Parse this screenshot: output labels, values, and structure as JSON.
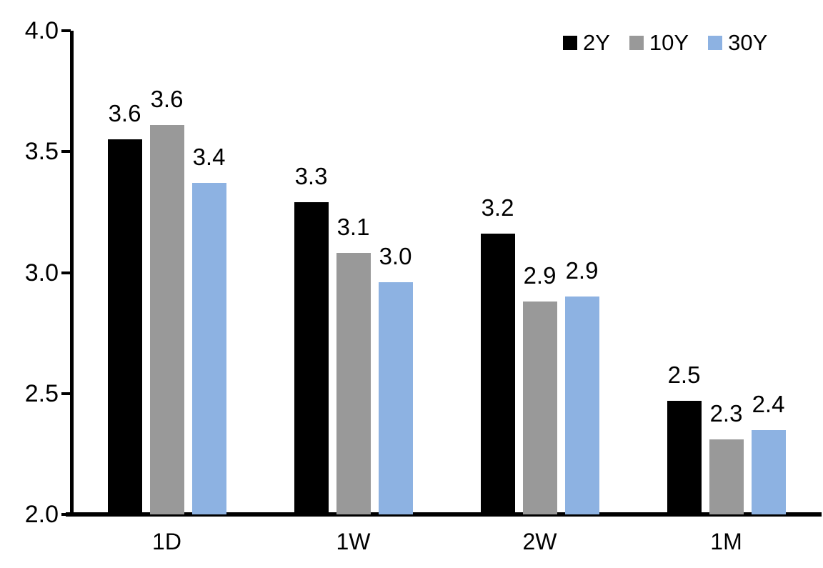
{
  "chart_data": {
    "type": "bar",
    "title": "",
    "xlabel": "",
    "ylabel": "",
    "categories": [
      "1D",
      "1W",
      "2W",
      "1M"
    ],
    "series": [
      {
        "name": "2Y",
        "color": "#000000",
        "values": [
          3.55,
          3.29,
          3.16,
          2.47
        ],
        "labels": [
          "3.6",
          "3.3",
          "3.2",
          "2.5"
        ]
      },
      {
        "name": "10Y",
        "color": "#999999",
        "values": [
          3.61,
          3.08,
          2.88,
          2.31
        ],
        "labels": [
          "3.6",
          "3.1",
          "2.9",
          "2.3"
        ]
      },
      {
        "name": "30Y",
        "color": "#8DB2E2",
        "values": [
          3.37,
          2.96,
          2.9,
          2.35
        ],
        "labels": [
          "3.4",
          "3.0",
          "2.9",
          "2.4"
        ]
      }
    ],
    "ylim": [
      2.0,
      4.0
    ],
    "yticks": [
      "2.0",
      "2.5",
      "3.0",
      "3.5",
      "4.0"
    ],
    "grid": false,
    "legend_position": "top-right",
    "axis_color": "#000000",
    "background_color": "#ffffff"
  }
}
